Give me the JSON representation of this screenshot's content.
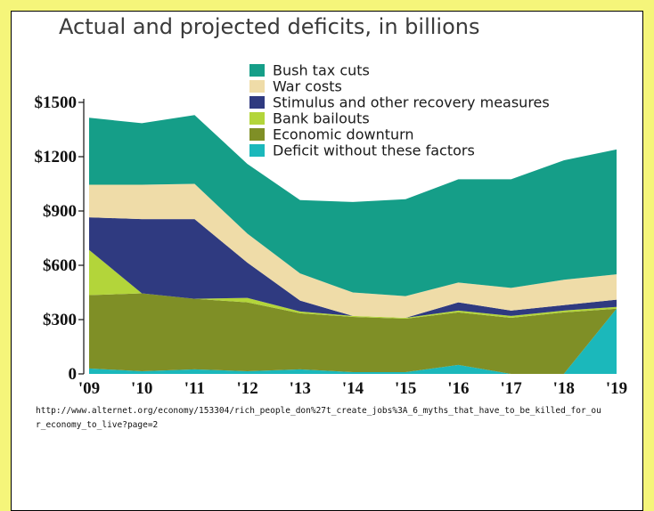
{
  "chart_data": {
    "type": "area",
    "title": "Actual and projected deficits, in billions",
    "categories": [
      "'09",
      "'10",
      "'11",
      "'12",
      "'13",
      "'14",
      "'15",
      "'16",
      "'17",
      "'18",
      "'19"
    ],
    "yticks": [
      "0",
      "$300",
      "$600",
      "$900",
      "$1200",
      "$1500"
    ],
    "ylim": [
      0,
      1500
    ],
    "stacked": true,
    "legend_position": "top-right",
    "series": [
      {
        "name": "Deficit without these factors",
        "color": "#1bb8bb",
        "values": [
          30,
          15,
          25,
          15,
          25,
          10,
          10,
          50,
          0,
          0,
          360
        ]
      },
      {
        "name": "Economic downturn",
        "color": "#7f8f26",
        "values": [
          405,
          430,
          390,
          380,
          310,
          305,
          295,
          290,
          310,
          340,
          0
        ]
      },
      {
        "name": "Bank bailouts",
        "color": "#b3d53a",
        "values": [
          250,
          0,
          0,
          25,
          10,
          5,
          5,
          10,
          10,
          10,
          10
        ]
      },
      {
        "name": "Stimulus and other recovery measures",
        "color": "#2f3a80",
        "values": [
          180,
          410,
          440,
          195,
          60,
          0,
          0,
          45,
          30,
          30,
          40
        ]
      },
      {
        "name": "War costs",
        "color": "#efdca8",
        "values": [
          180,
          190,
          195,
          160,
          150,
          130,
          120,
          110,
          125,
          140,
          140
        ]
      },
      {
        "name": "Bush tax cuts",
        "color": "#159e88",
        "values": [
          370,
          340,
          380,
          385,
          405,
          500,
          535,
          570,
          600,
          660,
          690
        ]
      }
    ]
  },
  "legend": [
    {
      "label": "Bush tax cuts",
      "color": "#159e88"
    },
    {
      "label": "War costs",
      "color": "#efdca8"
    },
    {
      "label": "Stimulus and other recovery measures",
      "color": "#2f3a80"
    },
    {
      "label": "Bank bailouts",
      "color": "#b3d53a"
    },
    {
      "label": "Economic downturn",
      "color": "#7f8f26"
    },
    {
      "label": "Deficit without these factors",
      "color": "#1bb8bb"
    }
  ],
  "source_url": "http://www.alternet.org/economy/153304/rich_people_don%27t_create_jobs%3A_6_myths_that_have_to_be_killed_for_our_economy_to_live?page=2"
}
